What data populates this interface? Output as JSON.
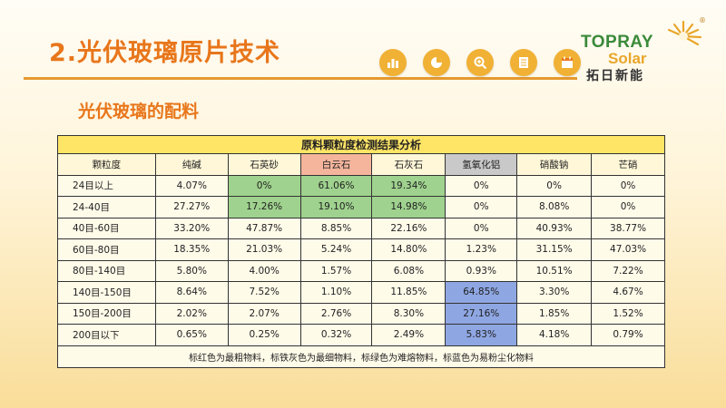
{
  "title": "2.光伏玻璃原片技术",
  "subtitle": "光伏玻璃的配料",
  "toolbar": {
    "icons": [
      "bar-chart-icon",
      "pie-chart-icon",
      "search-icon",
      "document-icon",
      "calendar-icon"
    ]
  },
  "logo": {
    "name": "TOPRAY",
    "solar": "Solar",
    "cn": "拓日新能",
    "reg": "®"
  },
  "colors": {
    "accent": "#e8761b",
    "icon_bg": "#f0b134",
    "header_band": "#ffe566",
    "coarse_red": "#f4b59c",
    "fine_gray": "#c9c9c9",
    "hard_green": "#9fd28e",
    "dust_blue": "#8ea6e2"
  },
  "table": {
    "caption": "原料颗粒度检测结果分析",
    "headers": [
      "颗粒度",
      "纯碱",
      "石英砂",
      "白云石",
      "石灰石",
      "氢氧化铝",
      "硝酸钠",
      "芒硝"
    ],
    "rows": [
      [
        "24目以上",
        "4.07%",
        "0%",
        "61.06%",
        "19.34%",
        "0%",
        "0%",
        "0%"
      ],
      [
        "24-40目",
        "27.27%",
        "17.26%",
        "19.10%",
        "14.98%",
        "0%",
        "8.08%",
        "0%"
      ],
      [
        "40目-60目",
        "33.20%",
        "47.87%",
        "8.85%",
        "22.16%",
        "0%",
        "40.93%",
        "38.77%"
      ],
      [
        "60目-80目",
        "18.35%",
        "21.03%",
        "5.24%",
        "14.80%",
        "1.23%",
        "31.15%",
        "47.03%"
      ],
      [
        "80目-140目",
        "5.80%",
        "4.00%",
        "1.57%",
        "6.08%",
        "0.93%",
        "10.51%",
        "7.22%"
      ],
      [
        "140目-150目",
        "8.64%",
        "7.52%",
        "1.10%",
        "11.85%",
        "64.85%",
        "3.30%",
        "4.67%"
      ],
      [
        "150目-200目",
        "2.02%",
        "2.07%",
        "2.76%",
        "8.30%",
        "27.16%",
        "1.85%",
        "1.52%"
      ],
      [
        "200目以下",
        "0.65%",
        "0.25%",
        "0.32%",
        "2.49%",
        "5.83%",
        "4.18%",
        "0.79%"
      ]
    ],
    "note": "标红色为最粗物料，标铁灰色为最细物料，标绿色为难熔物料，标蓝色为易粉尘化物料"
  }
}
